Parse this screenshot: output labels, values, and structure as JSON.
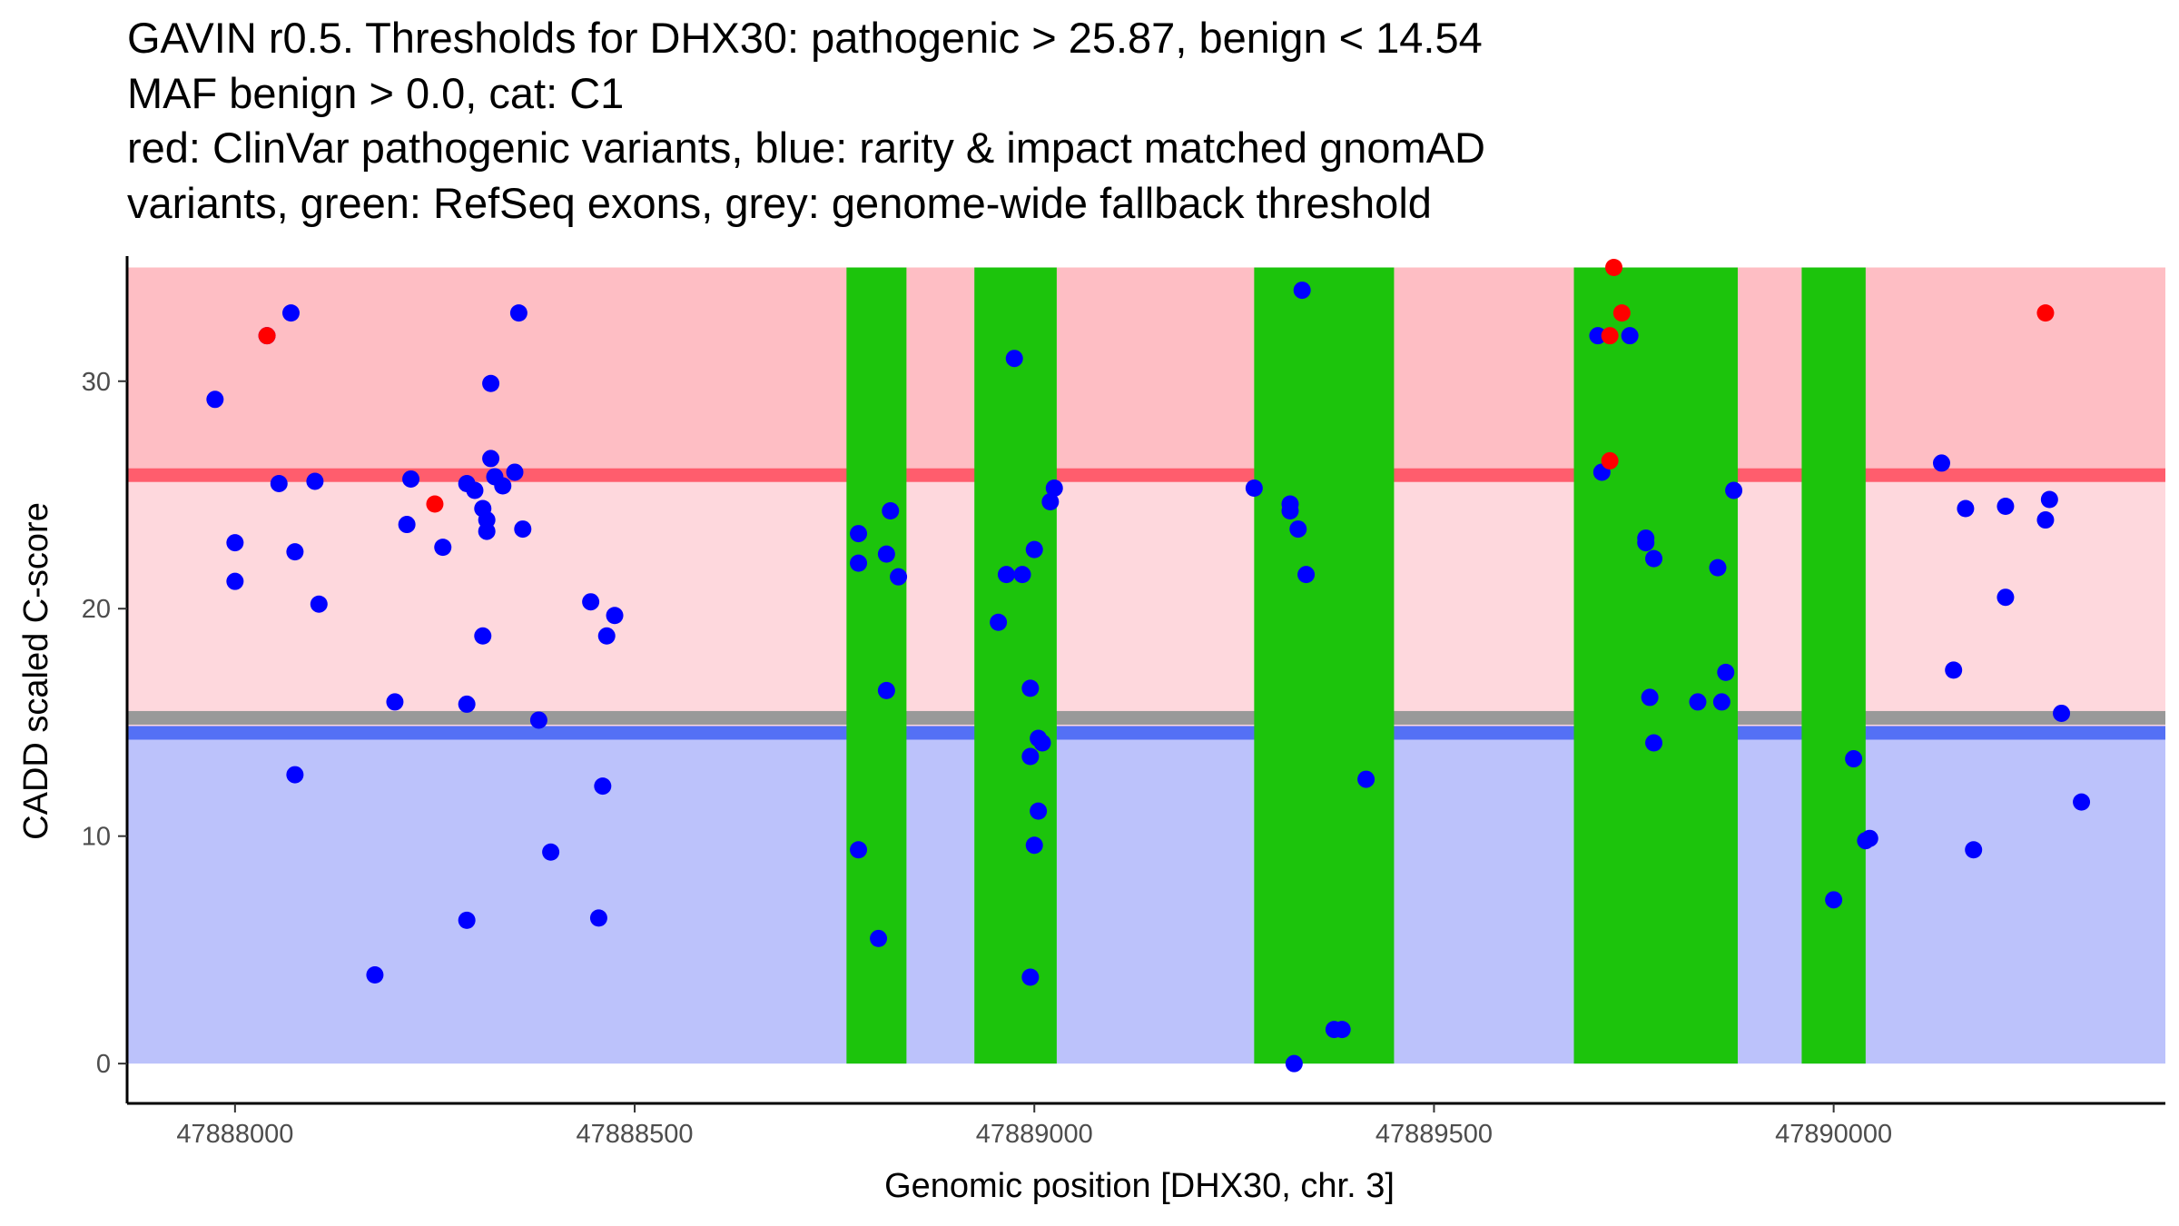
{
  "chart_data": {
    "type": "scatter",
    "title_lines": [
      "GAVIN r0.5. Thresholds for DHX30: pathogenic > 25.87, benign < 14.54",
      "MAF benign > 0.0, cat: C1",
      "red: ClinVar pathogenic variants, blue: rarity & impact matched gnomAD",
      "variants, green: RefSeq exons, grey: genome-wide fallback threshold"
    ],
    "xlabel": "Genomic position [DHX30, chr. 3]",
    "ylabel": "CADD scaled C-score",
    "xlim": [
      47887865,
      47890415
    ],
    "ylim": [
      -1.75,
      35.5
    ],
    "x_ticks": [
      {
        "value": 47888000,
        "label": "47888000"
      },
      {
        "value": 47888500,
        "label": "47888500"
      },
      {
        "value": 47889000,
        "label": "47889000"
      },
      {
        "value": 47889500,
        "label": "47889500"
      },
      {
        "value": 47890000,
        "label": "47890000"
      }
    ],
    "y_ticks": [
      {
        "value": 0,
        "label": "0"
      },
      {
        "value": 10,
        "label": "10"
      },
      {
        "value": 20,
        "label": "20"
      },
      {
        "value": 30,
        "label": "30"
      }
    ],
    "regions": {
      "benign_zone": {
        "from": 0,
        "to": 14.54,
        "color": "#bcc2fb"
      },
      "intermediate_zone": {
        "from": 14.54,
        "to": 25.87,
        "color": "#fed8dd"
      },
      "pathogenic_zone": {
        "from": 25.87,
        "to": 35,
        "color": "#febec4"
      }
    },
    "threshold_lines": [
      {
        "name": "genome-wide fallback threshold",
        "y": 15.2,
        "color": "#999999"
      },
      {
        "name": "benign threshold",
        "y": 14.54,
        "color": "#5470f5"
      },
      {
        "name": "pathogenic threshold",
        "y": 25.87,
        "color": "#ff5d6d"
      }
    ],
    "exons": [
      {
        "start": 47888765,
        "end": 47888840
      },
      {
        "start": 47888925,
        "end": 47889028
      },
      {
        "start": 47889275,
        "end": 47889450
      },
      {
        "start": 47889675,
        "end": 47889880
      },
      {
        "start": 47889960,
        "end": 47890040
      }
    ],
    "exon_color": "#1cc40c",
    "series": [
      {
        "name": "gnomAD variants",
        "color": "#0000ff",
        "points": [
          [
            47887975,
            29.2
          ],
          [
            47888040,
            32.0
          ],
          [
            47888055,
            25.5
          ],
          [
            47888070,
            33.0
          ],
          [
            47888075,
            22.5
          ],
          [
            47888075,
            12.7
          ],
          [
            47888000,
            22.9
          ],
          [
            47888000,
            21.2
          ],
          [
            47888100,
            25.6
          ],
          [
            47888105,
            20.2
          ],
          [
            47888175,
            3.9
          ],
          [
            47888200,
            15.9
          ],
          [
            47888215,
            23.7
          ],
          [
            47888220,
            25.7
          ],
          [
            47888260,
            22.7
          ],
          [
            47888290,
            25.5
          ],
          [
            47888300,
            25.2
          ],
          [
            47888310,
            24.4
          ],
          [
            47888315,
            23.9
          ],
          [
            47888315,
            23.4
          ],
          [
            47888310,
            18.8
          ],
          [
            47888320,
            26.6
          ],
          [
            47888320,
            29.9
          ],
          [
            47888325,
            25.8
          ],
          [
            47888335,
            25.4
          ],
          [
            47888350,
            26.0
          ],
          [
            47888355,
            33.0
          ],
          [
            47888360,
            23.5
          ],
          [
            47888380,
            15.1
          ],
          [
            47888290,
            15.8
          ],
          [
            47888290,
            6.3
          ],
          [
            47888395,
            9.3
          ],
          [
            47888445,
            20.3
          ],
          [
            47888455,
            6.4
          ],
          [
            47888460,
            12.2
          ],
          [
            47888465,
            18.8
          ],
          [
            47888475,
            19.7
          ],
          [
            47888780,
            23.3
          ],
          [
            47888780,
            22.0
          ],
          [
            47888780,
            9.4
          ],
          [
            47888805,
            5.5
          ],
          [
            47888815,
            16.4
          ],
          [
            47888815,
            22.4
          ],
          [
            47888820,
            24.3
          ],
          [
            47888830,
            21.4
          ],
          [
            47888955,
            19.4
          ],
          [
            47888965,
            21.5
          ],
          [
            47888975,
            31.0
          ],
          [
            47888985,
            21.5
          ],
          [
            47888995,
            16.5
          ],
          [
            47888995,
            13.5
          ],
          [
            47889000,
            22.6
          ],
          [
            47889000,
            9.6
          ],
          [
            47888995,
            3.8
          ],
          [
            47889005,
            14.3
          ],
          [
            47889005,
            11.1
          ],
          [
            47889010,
            14.1
          ],
          [
            47889020,
            24.7
          ],
          [
            47889025,
            25.3
          ],
          [
            47889275,
            25.3
          ],
          [
            47889320,
            24.6
          ],
          [
            47889320,
            24.3
          ],
          [
            47889330,
            23.5
          ],
          [
            47889335,
            34.0
          ],
          [
            47889340,
            21.5
          ],
          [
            47889325,
            0.0
          ],
          [
            47889375,
            1.5
          ],
          [
            47889385,
            1.5
          ],
          [
            47889415,
            12.5
          ],
          [
            47889705,
            32.0
          ],
          [
            47889710,
            26.0
          ],
          [
            47889745,
            32.0
          ],
          [
            47889765,
            23.1
          ],
          [
            47889765,
            22.9
          ],
          [
            47889770,
            16.1
          ],
          [
            47889775,
            22.2
          ],
          [
            47889775,
            14.1
          ],
          [
            47889830,
            15.9
          ],
          [
            47889855,
            21.8
          ],
          [
            47889860,
            15.9
          ],
          [
            47889865,
            17.2
          ],
          [
            47889875,
            25.2
          ],
          [
            47890000,
            7.2
          ],
          [
            47890025,
            13.4
          ],
          [
            47890040,
            9.8
          ],
          [
            47890045,
            9.9
          ],
          [
            47890135,
            26.4
          ],
          [
            47890150,
            17.3
          ],
          [
            47890165,
            24.4
          ],
          [
            47890175,
            9.4
          ],
          [
            47890215,
            24.5
          ],
          [
            47890215,
            20.5
          ],
          [
            47890265,
            23.9
          ],
          [
            47890270,
            24.8
          ],
          [
            47890285,
            15.4
          ],
          [
            47890310,
            11.5
          ]
        ]
      },
      {
        "name": "ClinVar pathogenic variants",
        "color": "#ff0000",
        "points": [
          [
            47888040,
            32.0
          ],
          [
            47888250,
            24.6
          ],
          [
            47889725,
            35.0
          ],
          [
            47889735,
            33.0
          ],
          [
            47889720,
            32.0
          ],
          [
            47889720,
            26.5
          ],
          [
            47890265,
            33.0
          ]
        ]
      }
    ]
  }
}
